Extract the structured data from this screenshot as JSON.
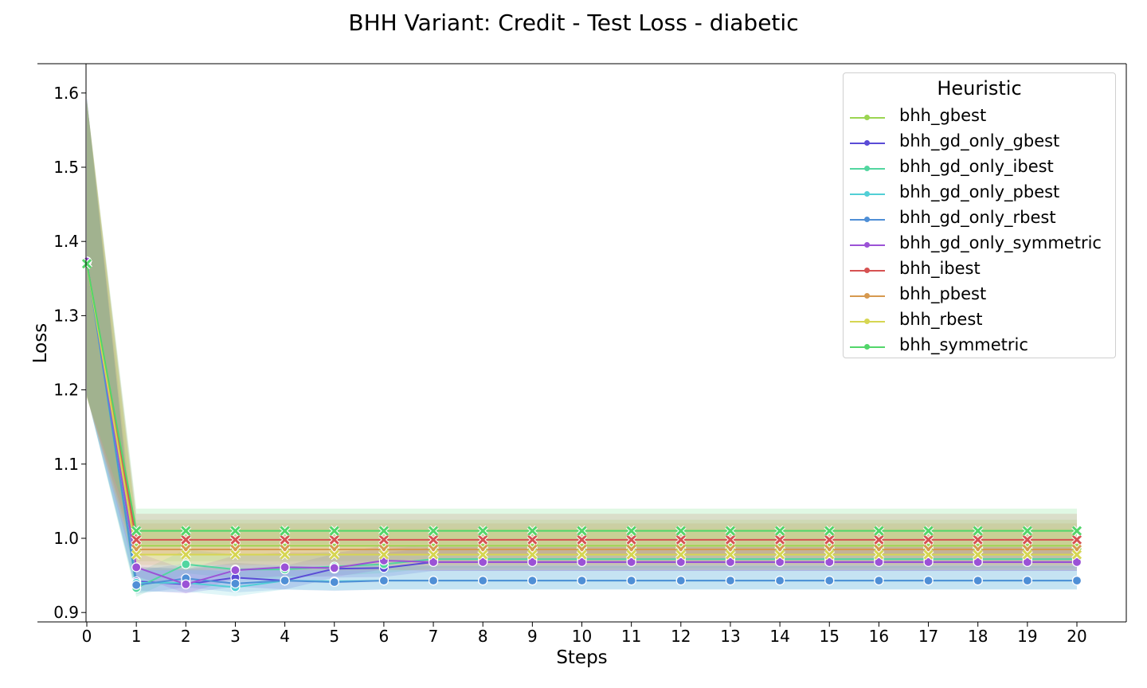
{
  "chart_data": {
    "type": "line",
    "title": "BHH Variant: Credit - Test Loss - diabetic",
    "xlabel": "Steps",
    "ylabel": "Loss",
    "x": [
      0,
      1,
      2,
      3,
      4,
      5,
      6,
      7,
      8,
      9,
      10,
      11,
      12,
      13,
      14,
      15,
      16,
      17,
      18,
      19,
      20
    ],
    "xlim": [
      0,
      20
    ],
    "ylim": [
      0.885,
      1.64
    ],
    "yticks": [
      "0.9",
      "1.0",
      "1.1",
      "1.2",
      "1.3",
      "1.4",
      "1.5",
      "1.6"
    ],
    "grid": false,
    "legend": {
      "title": "Heuristic",
      "position": "top-right"
    },
    "series": [
      {
        "name": "bhh_gbest",
        "color": "#9bd552",
        "marker": "x",
        "values": [
          1.37,
          0.99,
          0.99,
          0.99,
          0.99,
          0.99,
          0.99,
          0.99,
          0.99,
          0.99,
          0.99,
          0.99,
          0.99,
          0.99,
          0.99,
          0.99,
          0.99,
          0.99,
          0.99,
          0.99,
          0.99
        ],
        "band": 0.035
      },
      {
        "name": "bhh_gd_only_gbest",
        "color": "#5a4bd6",
        "marker": "o",
        "values": [
          1.373,
          0.942,
          0.938,
          0.947,
          0.943,
          0.959,
          0.96,
          0.968,
          0.968,
          0.968,
          0.968,
          0.968,
          0.968,
          0.968,
          0.968,
          0.968,
          0.968,
          0.968,
          0.968,
          0.968,
          0.968
        ],
        "band": 0.02
      },
      {
        "name": "bhh_gd_only_ibest",
        "color": "#52d6a0",
        "marker": "o",
        "values": [
          1.373,
          0.933,
          0.965,
          0.958,
          0.958,
          0.962,
          0.965,
          0.972,
          0.972,
          0.972,
          0.972,
          0.972,
          0.972,
          0.972,
          0.972,
          0.972,
          0.972,
          0.972,
          0.972,
          0.972,
          0.972
        ],
        "band": 0.02
      },
      {
        "name": "bhh_gd_only_pbest",
        "color": "#52cfd6",
        "marker": "o",
        "values": [
          1.373,
          0.94,
          0.94,
          0.934,
          0.943,
          0.942,
          0.943,
          0.943,
          0.943,
          0.943,
          0.943,
          0.943,
          0.943,
          0.943,
          0.943,
          0.943,
          0.943,
          0.943,
          0.943,
          0.943,
          0.943
        ],
        "band": 0.02
      },
      {
        "name": "bhh_gd_only_rbest",
        "color": "#4f8fd6",
        "marker": "o",
        "values": [
          1.373,
          0.937,
          0.946,
          0.939,
          0.943,
          0.941,
          0.943,
          0.943,
          0.943,
          0.943,
          0.943,
          0.943,
          0.943,
          0.943,
          0.943,
          0.943,
          0.943,
          0.943,
          0.943,
          0.943,
          0.943
        ],
        "band": 0.02
      },
      {
        "name": "bhh_gd_only_symmetric",
        "color": "#9b52d6",
        "marker": "o",
        "values": [
          1.373,
          0.961,
          0.938,
          0.957,
          0.961,
          0.96,
          0.97,
          0.968,
          0.968,
          0.968,
          0.968,
          0.968,
          0.968,
          0.968,
          0.968,
          0.968,
          0.968,
          0.968,
          0.968,
          0.968,
          0.968
        ],
        "band": 0.02
      },
      {
        "name": "bhh_ibest",
        "color": "#d65252",
        "marker": "x",
        "values": [
          1.37,
          0.998,
          0.998,
          0.998,
          0.998,
          0.998,
          0.998,
          0.998,
          0.998,
          0.998,
          0.998,
          0.998,
          0.998,
          0.998,
          0.998,
          0.998,
          0.998,
          0.998,
          0.998,
          0.998,
          0.998
        ],
        "band": 0.035
      },
      {
        "name": "bhh_pbest",
        "color": "#d6994f",
        "marker": "x",
        "values": [
          1.37,
          0.985,
          0.985,
          0.985,
          0.985,
          0.985,
          0.985,
          0.985,
          0.985,
          0.985,
          0.985,
          0.985,
          0.985,
          0.985,
          0.985,
          0.985,
          0.985,
          0.985,
          0.985,
          0.985,
          0.985
        ],
        "band": 0.035
      },
      {
        "name": "bhh_rbest",
        "color": "#d6d652",
        "marker": "x",
        "values": [
          1.37,
          0.978,
          0.978,
          0.978,
          0.978,
          0.978,
          0.978,
          0.978,
          0.978,
          0.978,
          0.978,
          0.978,
          0.978,
          0.978,
          0.978,
          0.978,
          0.978,
          0.978,
          0.978,
          0.978,
          0.978
        ],
        "band": 0.035
      },
      {
        "name": "bhh_symmetric",
        "color": "#52d66a",
        "marker": "x",
        "values": [
          1.37,
          1.01,
          1.01,
          1.01,
          1.01,
          1.01,
          1.01,
          1.01,
          1.01,
          1.01,
          1.01,
          1.01,
          1.01,
          1.01,
          1.01,
          1.01,
          1.01,
          1.01,
          1.01,
          1.01,
          1.01
        ],
        "band": 0.03
      }
    ]
  }
}
